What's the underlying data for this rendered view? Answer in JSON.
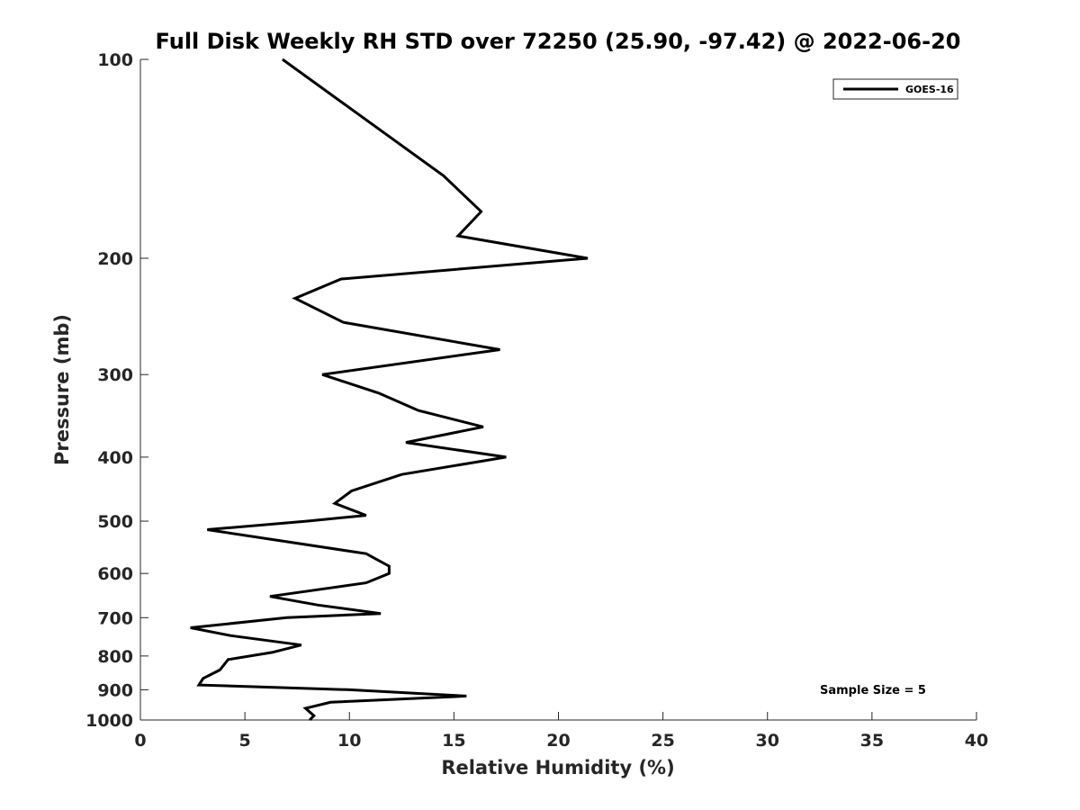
{
  "chart_data": {
    "type": "line",
    "title": "Full Disk Weekly RH STD over 72250 (25.90, -97.42) @ 2022-06-20",
    "xlabel": "Relative Humidity (%)",
    "ylabel": "Pressure (mb)",
    "xlim": [
      0,
      40
    ],
    "ylim": [
      100,
      1000
    ],
    "y_scale": "log",
    "y_reversed": true,
    "x_ticks": [
      "0",
      "5",
      "10",
      "15",
      "20",
      "25",
      "30",
      "35",
      "40"
    ],
    "y_ticks": [
      "100",
      "200",
      "300",
      "400",
      "500",
      "600",
      "700",
      "800",
      "900",
      "1000"
    ],
    "legend": {
      "placement": "top-right",
      "entries": [
        "GOES-16"
      ]
    },
    "annotation": "Sample Size = 5",
    "grid": false,
    "series": [
      {
        "name": "GOES-16",
        "color": "#000000",
        "points": [
          [
            6.8,
            100
          ],
          [
            14.5,
            150
          ],
          [
            16.3,
            170
          ],
          [
            15.2,
            185
          ],
          [
            21.4,
            200
          ],
          [
            9.6,
            215
          ],
          [
            7.4,
            230
          ],
          [
            9.7,
            250
          ],
          [
            17.2,
            275
          ],
          [
            8.7,
            300
          ],
          [
            11.4,
            320
          ],
          [
            13.3,
            340
          ],
          [
            16.4,
            360
          ],
          [
            12.7,
            380
          ],
          [
            17.5,
            400
          ],
          [
            12.5,
            425
          ],
          [
            10.1,
            450
          ],
          [
            9.3,
            470
          ],
          [
            10.8,
            490
          ],
          [
            8.0,
            500
          ],
          [
            3.2,
            515
          ],
          [
            10.8,
            560
          ],
          [
            11.9,
            585
          ],
          [
            11.9,
            600
          ],
          [
            10.8,
            620
          ],
          [
            6.2,
            650
          ],
          [
            8.5,
            670
          ],
          [
            11.5,
            690
          ],
          [
            7.0,
            700
          ],
          [
            2.4,
            725
          ],
          [
            4.3,
            745
          ],
          [
            7.7,
            770
          ],
          [
            6.3,
            790
          ],
          [
            4.2,
            810
          ],
          [
            3.8,
            840
          ],
          [
            3.0,
            865
          ],
          [
            2.8,
            885
          ],
          [
            10.0,
            900
          ],
          [
            15.6,
            920
          ],
          [
            9.1,
            940
          ],
          [
            7.9,
            960
          ],
          [
            8.3,
            985
          ],
          [
            8.1,
            1000
          ]
        ]
      }
    ]
  }
}
